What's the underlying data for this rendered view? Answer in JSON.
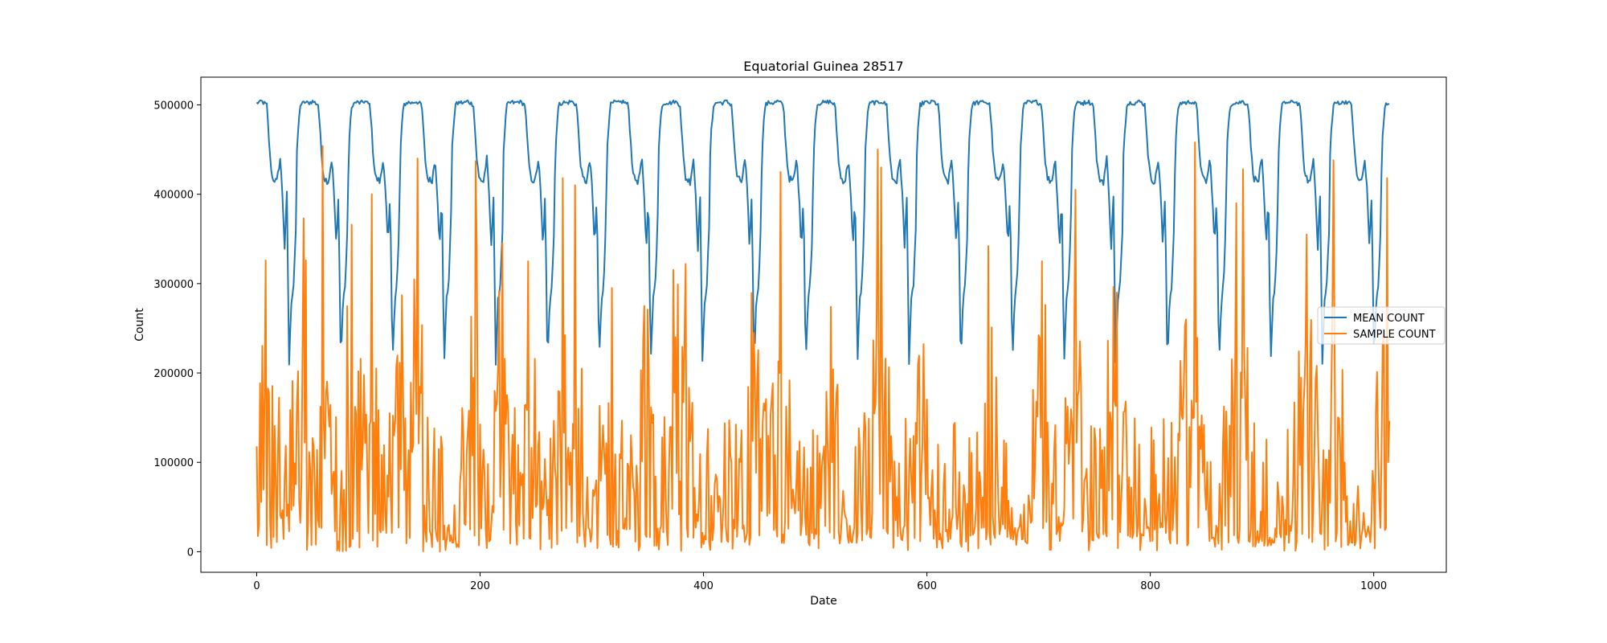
{
  "chart_data": {
    "type": "line",
    "title": "Equatorial Guinea 28517",
    "xlabel": "Date",
    "ylabel": "Count",
    "xlim": [
      -50,
      1065
    ],
    "ylim": [
      -23000,
      531000
    ],
    "xticks": [
      0,
      200,
      400,
      600,
      800,
      1000
    ],
    "yticks": [
      0,
      100000,
      200000,
      300000,
      400000,
      500000
    ],
    "grid": false,
    "legend_position": "center-right",
    "n_points": 1015,
    "series": [
      {
        "name": "MEAN COUNT",
        "color": "#1f77b4",
        "pattern": "periodic",
        "period_days": 46.25,
        "cycle_profile": [
          {
            "d": 0,
            "v": 502000
          },
          {
            "d": 4,
            "v": 504000
          },
          {
            "d": 9,
            "v": 500000
          },
          {
            "d": 12,
            "v": 440000
          },
          {
            "d": 14,
            "v": 418000
          },
          {
            "d": 18,
            "v": 414000
          },
          {
            "d": 21,
            "v": 440000
          },
          {
            "d": 23,
            "v": 400000
          },
          {
            "d": 25,
            "v": 340000
          },
          {
            "d": 27,
            "v": 400000
          },
          {
            "d": 29,
            "v": 210000
          },
          {
            "d": 31,
            "v": 280000
          },
          {
            "d": 33,
            "v": 300000
          },
          {
            "d": 35,
            "v": 360000
          },
          {
            "d": 36,
            "v": 445000
          },
          {
            "d": 37,
            "v": 470000
          },
          {
            "d": 39,
            "v": 500000
          },
          {
            "d": 43,
            "v": 503000
          },
          {
            "d": 46.25,
            "v": 502000
          }
        ],
        "min_value": 210000,
        "max_value": 505000
      },
      {
        "name": "SAMPLE COUNT",
        "color": "#ff7f0e",
        "pattern": "noisy",
        "min_value": 0,
        "max_value": 458000,
        "peaks": [
          {
            "x": 8,
            "y": 326000
          },
          {
            "x": 42,
            "y": 373000
          },
          {
            "x": 59,
            "y": 454000
          },
          {
            "x": 85,
            "y": 366000
          },
          {
            "x": 103,
            "y": 400000
          },
          {
            "x": 130,
            "y": 287000
          },
          {
            "x": 144,
            "y": 440000
          },
          {
            "x": 196,
            "y": 437000
          },
          {
            "x": 220,
            "y": 345000
          },
          {
            "x": 243,
            "y": 325000
          },
          {
            "x": 274,
            "y": 418000
          },
          {
            "x": 285,
            "y": 410000
          },
          {
            "x": 318,
            "y": 295000
          },
          {
            "x": 347,
            "y": 275000
          },
          {
            "x": 375,
            "y": 240000
          },
          {
            "x": 384,
            "y": 322000
          },
          {
            "x": 445,
            "y": 245000
          },
          {
            "x": 469,
            "y": 425000
          },
          {
            "x": 515,
            "y": 100000
          },
          {
            "x": 556,
            "y": 450000
          },
          {
            "x": 559,
            "y": 430000
          },
          {
            "x": 592,
            "y": 210000
          },
          {
            "x": 655,
            "y": 342000
          },
          {
            "x": 703,
            "y": 325000
          },
          {
            "x": 733,
            "y": 405000
          },
          {
            "x": 770,
            "y": 290000
          },
          {
            "x": 832,
            "y": 260000
          },
          {
            "x": 840,
            "y": 458000
          },
          {
            "x": 877,
            "y": 390000
          },
          {
            "x": 883,
            "y": 428000
          },
          {
            "x": 940,
            "y": 355000
          },
          {
            "x": 964,
            "y": 438000
          },
          {
            "x": 1012,
            "y": 418000
          }
        ]
      }
    ]
  }
}
